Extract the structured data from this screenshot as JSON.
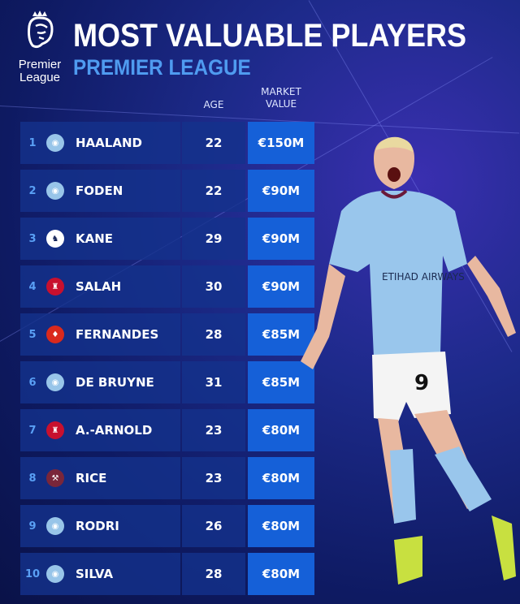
{
  "logo": {
    "line1": "Premier",
    "line2": "League"
  },
  "title": "MOST VALUABLE PLAYERS",
  "subtitle": "PREMIER LEAGUE",
  "headers": {
    "age": "AGE",
    "value_line1": "MARKET",
    "value_line2": "VALUE"
  },
  "rows": [
    {
      "rank": "1",
      "club": "man-city",
      "name": "HAALAND",
      "age": "22",
      "value": "€150M"
    },
    {
      "rank": "2",
      "club": "man-city",
      "name": "FODEN",
      "age": "22",
      "value": "€90M"
    },
    {
      "rank": "3",
      "club": "tottenham",
      "name": "KANE",
      "age": "29",
      "value": "€90M"
    },
    {
      "rank": "4",
      "club": "liverpool",
      "name": "SALAH",
      "age": "30",
      "value": "€90M"
    },
    {
      "rank": "5",
      "club": "man-united",
      "name": "FERNANDES",
      "age": "28",
      "value": "€85M"
    },
    {
      "rank": "6",
      "club": "man-city",
      "name": "DE BRUYNE",
      "age": "31",
      "value": "€85M"
    },
    {
      "rank": "7",
      "club": "liverpool",
      "name": "A.-ARNOLD",
      "age": "23",
      "value": "€80M"
    },
    {
      "rank": "8",
      "club": "west-ham",
      "name": "RICE",
      "age": "23",
      "value": "€80M"
    },
    {
      "rank": "9",
      "club": "man-city",
      "name": "RODRI",
      "age": "26",
      "value": "€80M"
    },
    {
      "rank": "10",
      "club": "man-city",
      "name": "SILVA",
      "age": "28",
      "value": "€80M"
    }
  ],
  "club_colors": {
    "man-city": "#98c5e9",
    "tottenham": "#ffffff",
    "liverpool": "#c8102e",
    "man-united": "#da291c",
    "west-ham": "#7a263a"
  },
  "player_photo": {
    "shirt_number": "9",
    "sponsor": "ETIHAD AIRWAYS"
  }
}
